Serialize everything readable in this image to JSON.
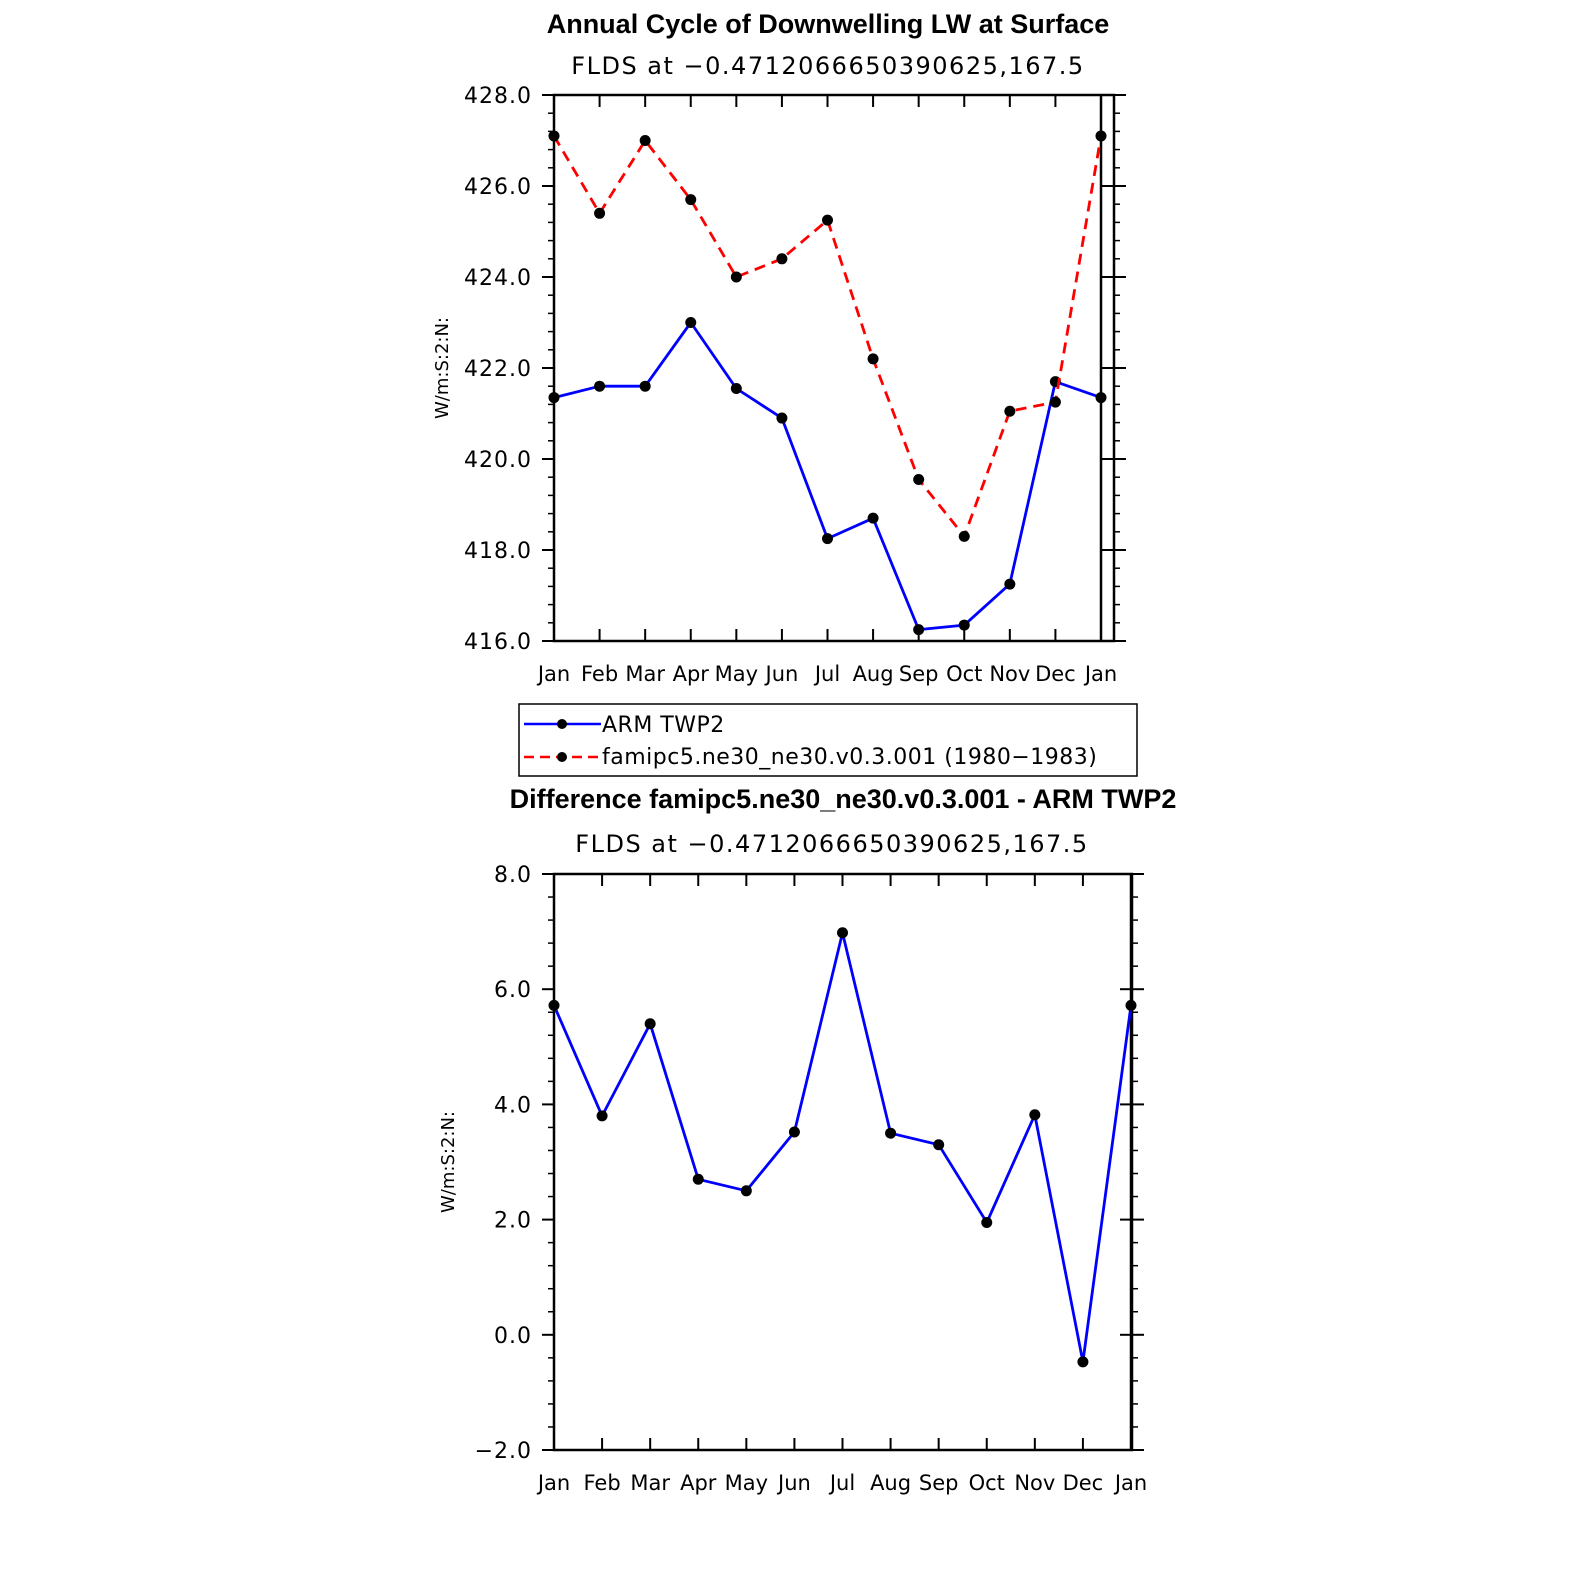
{
  "chart_data": [
    {
      "type": "line",
      "title": "Annual Cycle of Downwelling LW at Surface",
      "subtitle": "FLDS at −0.4712066650390625,167.5",
      "ylabel": "W/m:S:2:N:",
      "xlabel": "",
      "categories": [
        "Jan",
        "Feb",
        "Mar",
        "Apr",
        "May",
        "Jun",
        "Jul",
        "Aug",
        "Sep",
        "Oct",
        "Nov",
        "Dec",
        "Jan"
      ],
      "ylim": [
        416.0,
        428.0
      ],
      "yticks": [
        "416.0",
        "418.0",
        "420.0",
        "422.0",
        "424.0",
        "426.0",
        "428.0"
      ],
      "grid": false,
      "legend_position": "bottom",
      "series": [
        {
          "name": "ARM TWP2",
          "color": "#0000ff",
          "style": "solid",
          "marker": "circle",
          "values": [
            421.35,
            421.6,
            421.6,
            423.0,
            421.55,
            420.9,
            418.25,
            418.7,
            416.25,
            416.35,
            417.25,
            421.7,
            421.35
          ]
        },
        {
          "name": "famipc5.ne30_ne30.v0.3.001 (1980−1983)",
          "color": "#ff0000",
          "style": "dashed",
          "marker": "circle",
          "values": [
            427.1,
            425.4,
            427.0,
            425.7,
            424.0,
            424.4,
            425.25,
            422.2,
            419.55,
            418.3,
            421.05,
            421.25,
            427.1
          ]
        }
      ]
    },
    {
      "type": "line",
      "title": "Difference famipc5.ne30_ne30.v0.3.001 - ARM TWP2",
      "subtitle": "FLDS at −0.4712066650390625,167.5",
      "ylabel": "W/m:S:2:N:",
      "xlabel": "",
      "categories": [
        "Jan",
        "Feb",
        "Mar",
        "Apr",
        "May",
        "Jun",
        "Jul",
        "Aug",
        "Sep",
        "Oct",
        "Nov",
        "Dec",
        "Jan"
      ],
      "ylim": [
        -2.0,
        8.0
      ],
      "yticks": [
        "−2.0",
        "0.0",
        "2.0",
        "4.0",
        "6.0",
        "8.0"
      ],
      "grid": false,
      "series": [
        {
          "color": "#0000ff",
          "style": "solid",
          "marker": "circle",
          "values": [
            5.72,
            3.8,
            5.4,
            2.7,
            2.5,
            3.52,
            6.98,
            3.5,
            3.3,
            1.95,
            3.82,
            -0.47,
            5.72
          ]
        }
      ]
    }
  ]
}
